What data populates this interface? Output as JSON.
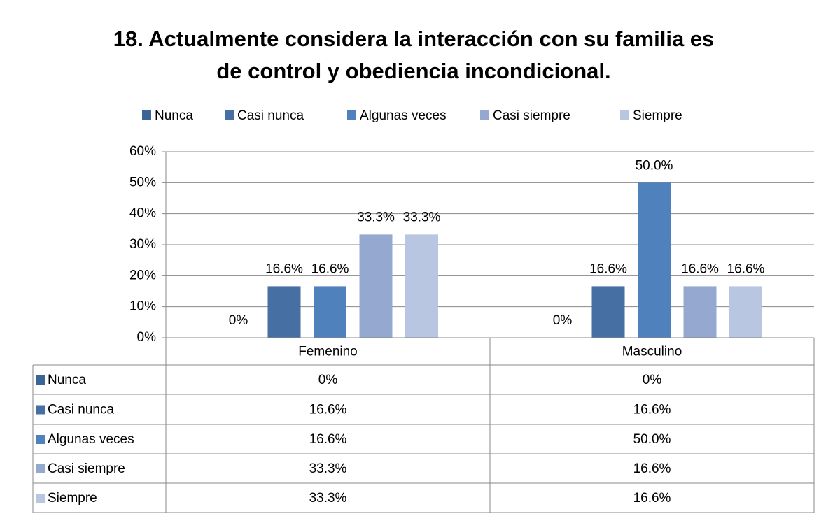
{
  "chart_data": {
    "type": "bar",
    "title": [
      "18. Actualmente considera la interacción con su familia es",
      "de control y obediencia incondicional."
    ],
    "categories": [
      "Femenino",
      "Masculino"
    ],
    "series": [
      {
        "name": "Nunca",
        "color": "#3c6494",
        "values": [
          0,
          0
        ],
        "value_labels": [
          "0%",
          "0%"
        ]
      },
      {
        "name": "Casi nunca",
        "color": "#4670a4",
        "values": [
          16.6,
          16.6
        ],
        "value_labels": [
          "16.6%",
          "16.6%"
        ]
      },
      {
        "name": "Algunas veces",
        "color": "#4f81bd",
        "values": [
          16.6,
          50.0
        ],
        "value_labels": [
          "16.6%",
          "50.0%"
        ]
      },
      {
        "name": "Casi siempre",
        "color": "#95a8d0",
        "values": [
          33.3,
          16.6
        ],
        "value_labels": [
          "33.3%",
          "16.6%"
        ]
      },
      {
        "name": "Siempre",
        "color": "#b9c6e1",
        "values": [
          33.3,
          16.6
        ],
        "value_labels": [
          "33.3%",
          "16.6%"
        ]
      }
    ],
    "ylim": [
      0,
      60
    ],
    "yticks": [
      {
        "value": 0,
        "label": "0%"
      },
      {
        "value": 10,
        "label": "10%"
      },
      {
        "value": 20,
        "label": "20%"
      },
      {
        "value": 30,
        "label": "30%"
      },
      {
        "value": 40,
        "label": "40%"
      },
      {
        "value": 50,
        "label": "50%"
      },
      {
        "value": 60,
        "label": "60%"
      }
    ],
    "grid": true,
    "legend": "top",
    "data_table": true
  }
}
